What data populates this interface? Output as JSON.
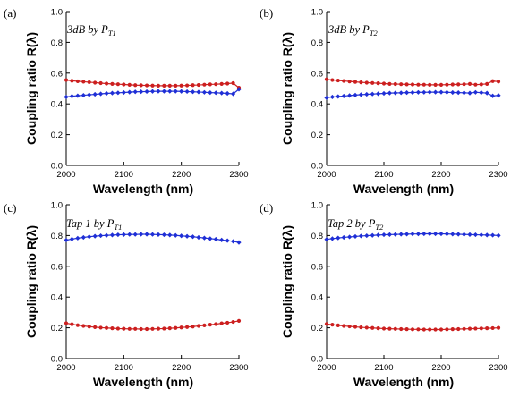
{
  "chart_data": [
    {
      "type": "line",
      "panel_label": "(a)",
      "annotation": {
        "main": "3dB by P",
        "sub": "T1"
      },
      "xlabel": "Wavelength (nm)",
      "ylabel": "Coupling ratio R(λ)",
      "xlim": [
        2000,
        2300
      ],
      "ylim": [
        0.0,
        1.0
      ],
      "xticks": [
        "2000",
        "2100",
        "2200",
        "2300"
      ],
      "yticks": [
        "0.0",
        "0.2",
        "0.4",
        "0.6",
        "0.8",
        "1.0"
      ],
      "x": [
        2000,
        2010,
        2020,
        2030,
        2040,
        2050,
        2060,
        2070,
        2080,
        2090,
        2100,
        2110,
        2120,
        2130,
        2140,
        2150,
        2160,
        2170,
        2180,
        2190,
        2200,
        2210,
        2220,
        2230,
        2240,
        2250,
        2260,
        2270,
        2280,
        2290,
        2300
      ],
      "series": [
        {
          "color": "#cc1f1f",
          "marker": "circle",
          "values": [
            0.555,
            0.55,
            0.547,
            0.544,
            0.541,
            0.538,
            0.535,
            0.532,
            0.53,
            0.528,
            0.526,
            0.524,
            0.522,
            0.521,
            0.52,
            0.519,
            0.518,
            0.518,
            0.518,
            0.518,
            0.519,
            0.52,
            0.522,
            0.523,
            0.525,
            0.527,
            0.528,
            0.53,
            0.532,
            0.535,
            0.505
          ]
        },
        {
          "color": "#1f2fd6",
          "marker": "diamond",
          "values": [
            0.445,
            0.45,
            0.453,
            0.456,
            0.459,
            0.462,
            0.465,
            0.468,
            0.47,
            0.472,
            0.474,
            0.476,
            0.478,
            0.479,
            0.48,
            0.481,
            0.482,
            0.482,
            0.482,
            0.482,
            0.481,
            0.48,
            0.478,
            0.477,
            0.475,
            0.473,
            0.472,
            0.47,
            0.468,
            0.465,
            0.495
          ]
        }
      ]
    },
    {
      "type": "line",
      "panel_label": "(b)",
      "annotation": {
        "main": "3dB by P",
        "sub": "T2"
      },
      "xlabel": "Wavelength (nm)",
      "ylabel": "Coupling ratio R(λ)",
      "xlim": [
        2000,
        2300
      ],
      "ylim": [
        0.0,
        1.0
      ],
      "xticks": [
        "2000",
        "2100",
        "2200",
        "2300"
      ],
      "yticks": [
        "0.0",
        "0.2",
        "0.4",
        "0.6",
        "0.8",
        "1.0"
      ],
      "x": [
        2000,
        2010,
        2020,
        2030,
        2040,
        2050,
        2060,
        2070,
        2080,
        2090,
        2100,
        2110,
        2120,
        2130,
        2140,
        2150,
        2160,
        2170,
        2180,
        2190,
        2200,
        2210,
        2220,
        2230,
        2240,
        2250,
        2260,
        2270,
        2280,
        2290,
        2300
      ],
      "series": [
        {
          "color": "#cc1f1f",
          "marker": "circle",
          "values": [
            0.56,
            0.555,
            0.552,
            0.549,
            0.546,
            0.543,
            0.54,
            0.538,
            0.536,
            0.534,
            0.532,
            0.53,
            0.529,
            0.528,
            0.527,
            0.526,
            0.525,
            0.525,
            0.524,
            0.524,
            0.524,
            0.525,
            0.526,
            0.527,
            0.528,
            0.53,
            0.525,
            0.527,
            0.53,
            0.548,
            0.545
          ]
        },
        {
          "color": "#1f2fd6",
          "marker": "diamond",
          "values": [
            0.44,
            0.445,
            0.448,
            0.451,
            0.454,
            0.457,
            0.46,
            0.462,
            0.464,
            0.466,
            0.468,
            0.47,
            0.471,
            0.472,
            0.473,
            0.474,
            0.475,
            0.475,
            0.476,
            0.476,
            0.476,
            0.475,
            0.474,
            0.473,
            0.472,
            0.47,
            0.475,
            0.473,
            0.47,
            0.452,
            0.455
          ]
        }
      ]
    },
    {
      "type": "line",
      "panel_label": "(c)",
      "annotation": {
        "main": "Tap 1 by P",
        "sub": "T1"
      },
      "xlabel": "Wavelength (nm)",
      "ylabel": "Coupling ratio R(λ)",
      "xlim": [
        2000,
        2300
      ],
      "ylim": [
        0.0,
        1.0
      ],
      "xticks": [
        "2000",
        "2100",
        "2200",
        "2300"
      ],
      "yticks": [
        "0.0",
        "0.2",
        "0.4",
        "0.6",
        "0.8",
        "1.0"
      ],
      "x": [
        2000,
        2010,
        2020,
        2030,
        2040,
        2050,
        2060,
        2070,
        2080,
        2090,
        2100,
        2110,
        2120,
        2130,
        2140,
        2150,
        2160,
        2170,
        2180,
        2190,
        2200,
        2210,
        2220,
        2230,
        2240,
        2250,
        2260,
        2270,
        2280,
        2290,
        2300
      ],
      "series": [
        {
          "color": "#1f2fd6",
          "marker": "diamond",
          "values": [
            0.77,
            0.777,
            0.783,
            0.788,
            0.792,
            0.796,
            0.799,
            0.801,
            0.803,
            0.805,
            0.806,
            0.807,
            0.807,
            0.808,
            0.808,
            0.807,
            0.806,
            0.805,
            0.803,
            0.801,
            0.798,
            0.795,
            0.792,
            0.788,
            0.784,
            0.78,
            0.776,
            0.771,
            0.767,
            0.762,
            0.755
          ]
        },
        {
          "color": "#cc1f1f",
          "marker": "circle",
          "values": [
            0.23,
            0.223,
            0.217,
            0.212,
            0.208,
            0.204,
            0.201,
            0.199,
            0.197,
            0.195,
            0.194,
            0.193,
            0.193,
            0.192,
            0.192,
            0.193,
            0.194,
            0.195,
            0.197,
            0.199,
            0.202,
            0.205,
            0.208,
            0.212,
            0.216,
            0.22,
            0.224,
            0.229,
            0.233,
            0.238,
            0.245
          ]
        }
      ]
    },
    {
      "type": "line",
      "panel_label": "(d)",
      "annotation": {
        "main": "Tap 2 by P",
        "sub": "T2"
      },
      "xlabel": "Wavelength (nm)",
      "ylabel": "Coupling ratio R(λ)",
      "xlim": [
        2000,
        2300
      ],
      "ylim": [
        0.0,
        1.0
      ],
      "xticks": [
        "2000",
        "2100",
        "2200",
        "2300"
      ],
      "yticks": [
        "0.0",
        "0.2",
        "0.4",
        "0.6",
        "0.8",
        "1.0"
      ],
      "x": [
        2000,
        2010,
        2020,
        2030,
        2040,
        2050,
        2060,
        2070,
        2080,
        2090,
        2100,
        2110,
        2120,
        2130,
        2140,
        2150,
        2160,
        2170,
        2180,
        2190,
        2200,
        2210,
        2220,
        2230,
        2240,
        2250,
        2260,
        2270,
        2280,
        2290,
        2300
      ],
      "series": [
        {
          "color": "#1f2fd6",
          "marker": "diamond",
          "values": [
            0.775,
            0.78,
            0.784,
            0.788,
            0.791,
            0.794,
            0.797,
            0.799,
            0.801,
            0.803,
            0.805,
            0.806,
            0.807,
            0.808,
            0.809,
            0.81,
            0.81,
            0.811,
            0.811,
            0.811,
            0.811,
            0.81,
            0.809,
            0.808,
            0.807,
            0.806,
            0.805,
            0.804,
            0.803,
            0.802,
            0.8
          ]
        },
        {
          "color": "#cc1f1f",
          "marker": "circle",
          "values": [
            0.225,
            0.22,
            0.216,
            0.212,
            0.209,
            0.206,
            0.203,
            0.201,
            0.199,
            0.197,
            0.195,
            0.194,
            0.193,
            0.192,
            0.191,
            0.19,
            0.19,
            0.189,
            0.189,
            0.189,
            0.189,
            0.19,
            0.191,
            0.192,
            0.193,
            0.194,
            0.195,
            0.196,
            0.197,
            0.198,
            0.2
          ]
        }
      ]
    }
  ]
}
